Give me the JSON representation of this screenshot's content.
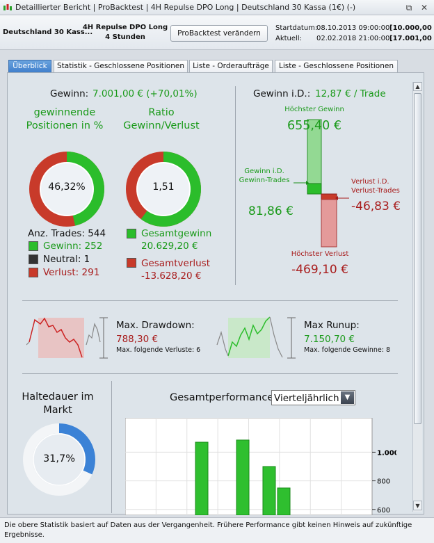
{
  "window": {
    "title": "Detaillierter Bericht | ProBacktest | 4H Repulse DPO Long | Deutschland 30 Kassa (1€) (-)",
    "buttons": [
      "⧉",
      "✕"
    ]
  },
  "toolbar": {
    "instrument": "Deutschland 30 Kass...",
    "strategy_line1": "4H Repulse DPO Long",
    "strategy_line2": "4 Stunden",
    "button_label": "ProBacktest verändern",
    "start_label": "Startdatum:",
    "start_date": "08.10.2013 09:00:00",
    "start_value": "[10.000,00 €",
    "current_label": "Aktuell:",
    "current_date": "02.02.2018 21:00:00",
    "current_value": "[17.001,00 €"
  },
  "tabs": [
    {
      "label": "Überblick",
      "active": true
    },
    {
      "label": "Statistik - Geschlossene Positionen",
      "active": false
    },
    {
      "label": "Liste - Orderaufträge",
      "active": false
    },
    {
      "label": "Liste - Geschlossene Positionen",
      "active": false
    }
  ],
  "gewinn": {
    "label": "Gewinn:",
    "value": "7.001,00 € (+70,01%)",
    "win_title": "gewinnende Positionen in %",
    "win_pct": "46,32%",
    "win_fraction": 0.4632,
    "ratio_title": "Ratio Gewinn/Verlust",
    "ratio_value": "1,51",
    "ratio_fraction": 0.6016,
    "trades_label": "Anz. Trades: 544",
    "gewinn_count": "Gewinn: 252",
    "neutral_count": "Neutral: 1",
    "verlust_count": "Verlust: 291",
    "gesamtgewinn_label": "Gesamtgewinn",
    "gesamtgewinn_value": "20.629,20 €",
    "gesamtverlust_label": "Gesamtverlust",
    "gesamtverlust_value": "-13.628,20 €"
  },
  "id": {
    "label": "Gewinn i.D.:",
    "value": "12,87 € / Trade",
    "hoechster_gewinn_label": "Höchster Gewinn",
    "hoechster_gewinn_value": "655,40 €",
    "gewinn_trades_label_1": "Gewinn i.D.",
    "gewinn_trades_label_2": "Gewinn-Trades",
    "gewinn_trades_value": "81,86 €",
    "verlust_trades_label_1": "Verlust i.D.",
    "verlust_trades_label_2": "Verlust-Trades",
    "verlust_trades_value": "-46,83 €",
    "hoechster_verlust_label": "Höchster Verlust",
    "hoechster_verlust_value": "-469,10 €"
  },
  "drawdown": {
    "label": "Max. Drawdown:",
    "value": "788,30 €",
    "sub": "Max. folgende Verluste: 6"
  },
  "runup": {
    "label": "Max Runup:",
    "value": "7.150,70 €",
    "sub": "Max. folgende Gewinne: 8"
  },
  "haltedauer": {
    "title_1": "Haltedauer im",
    "title_2": "Markt",
    "value": "31,7%",
    "fraction": 0.317
  },
  "performance": {
    "title": "Gesamtperformance",
    "period": "Vierteljährlich"
  },
  "chart_data": {
    "type": "bar",
    "values": [
      1070,
      1085,
      900,
      750
    ],
    "ticks": [
      "1.000",
      "800",
      "600"
    ],
    "ylim": [
      560,
      1240
    ],
    "color": "#2fbf2f"
  },
  "status": {
    "text": "Die obere Statistik basiert auf Daten aus der Vergangenheit. Frühere Performance gibt keinen Hinweis auf zukünftige Ergebnisse."
  }
}
